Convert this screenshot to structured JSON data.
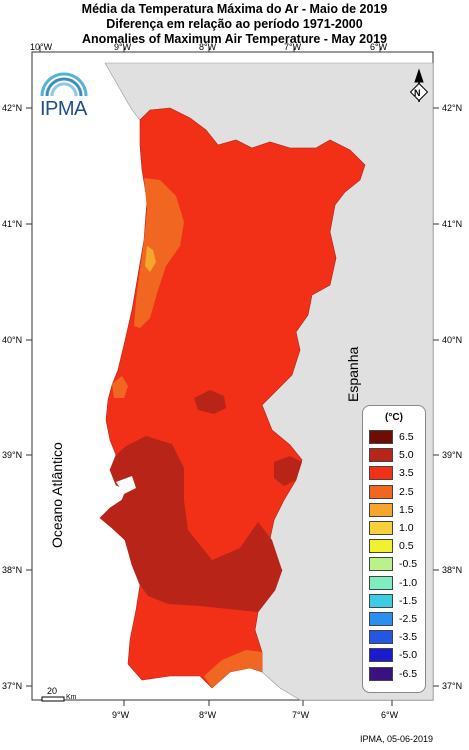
{
  "title_lines": [
    "Média da Temperatura Máxima do Ar - Maio de 2019",
    "Diferença em relação ao período 1971-2000",
    "Anomalies of Maximum Air Temperature - May 2019"
  ],
  "logo": {
    "text": "IPMA"
  },
  "longitude_ticks": [
    "10°W",
    "9°W",
    "8°W",
    "7°W",
    "6°W"
  ],
  "latitude_ticks": [
    "42°N",
    "41°N",
    "40°N",
    "39°N",
    "38°N",
    "37°N"
  ],
  "labels": {
    "ocean": "Oceano Atlântico",
    "country": "Espanha"
  },
  "legend": {
    "title": "(°C)",
    "items": [
      {
        "label": "6.5",
        "color": "#6e0d05"
      },
      {
        "label": "5.0",
        "color": "#b82417"
      },
      {
        "label": "3.5",
        "color": "#f23018"
      },
      {
        "label": "2.5",
        "color": "#f16722"
      },
      {
        "label": "1.5",
        "color": "#f7a62d"
      },
      {
        "label": "1.0",
        "color": "#f7d03c"
      },
      {
        "label": "0.5",
        "color": "#f1f132"
      },
      {
        "label": "-0.5",
        "color": "#b9f28b"
      },
      {
        "label": "-1.0",
        "color": "#7eeec0"
      },
      {
        "label": "-1.5",
        "color": "#3dcce6"
      },
      {
        "label": "-2.5",
        "color": "#2a8ff0"
      },
      {
        "label": "-3.5",
        "color": "#2457e0"
      },
      {
        "label": "-5.0",
        "color": "#1a1acf"
      },
      {
        "label": "-6.5",
        "color": "#3a1280"
      }
    ]
  },
  "scale_bar": {
    "value": "20",
    "unit": "Km"
  },
  "credit": "IPMA, 05-06-2019"
}
